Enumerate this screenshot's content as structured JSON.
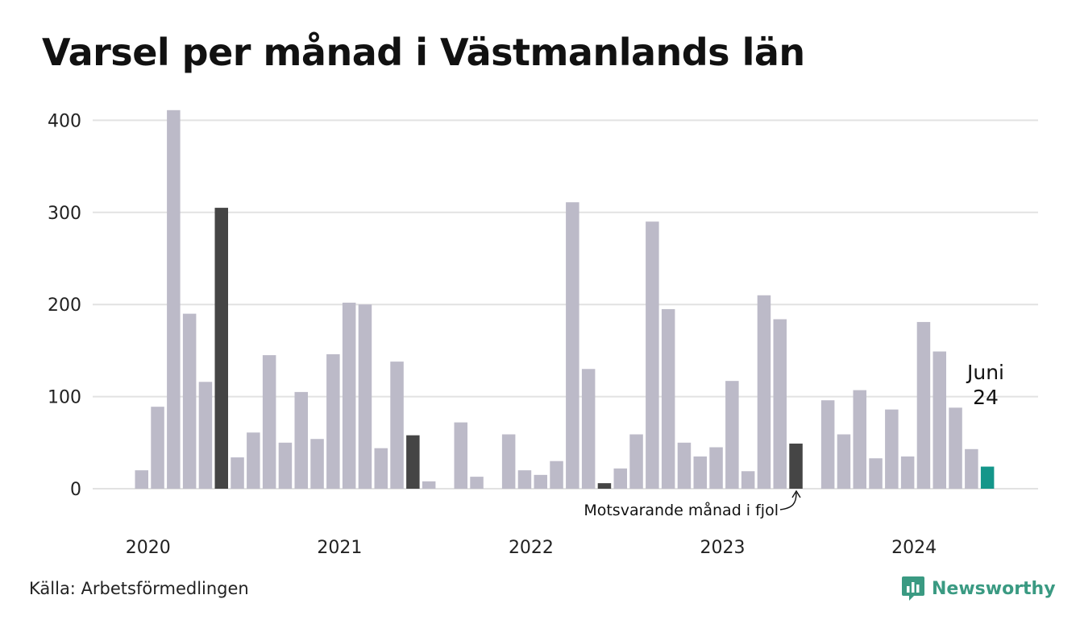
{
  "title": "Varsel per månad i Västmanlands län",
  "source": "Källa: Arbetsförmedlingen",
  "brand": "Newsworthy",
  "annotations": {
    "last_month": "Juni",
    "last_value": "24",
    "same_month_last_year": "Motsvarande månad i fjol"
  },
  "colors": {
    "bar": "#bcbac8",
    "highlight": "#454545",
    "current": "#14968a",
    "grid": "#e2e2e2",
    "brand": "#3a9a82"
  },
  "chart_data": {
    "type": "bar",
    "title": "Varsel per månad i Västmanlands län",
    "xlabel": "",
    "ylabel": "",
    "ylim": [
      0,
      400
    ],
    "yticks": [
      0,
      100,
      200,
      300,
      400
    ],
    "grid": true,
    "year_labels": [
      "2020",
      "2021",
      "2022",
      "2023",
      "2024"
    ],
    "categories": [
      "2020-01",
      "2020-02",
      "2020-03",
      "2020-04",
      "2020-05",
      "2020-06",
      "2020-07",
      "2020-08",
      "2020-09",
      "2020-10",
      "2020-11",
      "2020-12",
      "2021-01",
      "2021-02",
      "2021-03",
      "2021-04",
      "2021-05",
      "2021-06",
      "2021-07",
      "2021-08",
      "2021-09",
      "2021-10",
      "2021-11",
      "2021-12",
      "2022-01",
      "2022-02",
      "2022-03",
      "2022-04",
      "2022-05",
      "2022-06",
      "2022-07",
      "2022-08",
      "2022-09",
      "2022-10",
      "2022-11",
      "2022-12",
      "2023-01",
      "2023-02",
      "2023-03",
      "2023-04",
      "2023-05",
      "2023-06",
      "2023-07",
      "2023-08",
      "2023-09",
      "2023-10",
      "2023-11",
      "2023-12",
      "2024-01",
      "2024-02",
      "2024-03",
      "2024-04",
      "2024-05",
      "2024-06"
    ],
    "values": [
      20,
      89,
      411,
      190,
      116,
      305,
      34,
      61,
      145,
      50,
      105,
      54,
      146,
      202,
      200,
      44,
      138,
      58,
      8,
      0,
      72,
      13,
      0,
      59,
      20,
      15,
      30,
      311,
      130,
      6,
      22,
      59,
      290,
      195,
      50,
      35,
      45,
      117,
      19,
      210,
      184,
      49,
      0,
      96,
      59,
      107,
      33,
      86,
      35,
      181,
      149,
      88,
      43,
      24
    ],
    "highlight_indices": [
      5,
      17,
      29,
      41
    ],
    "current_index": 53
  }
}
